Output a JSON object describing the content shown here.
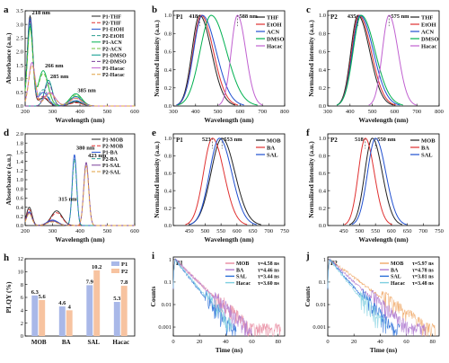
{
  "chart_data": [
    {
      "id": "a",
      "panel_label": "a",
      "type": "line",
      "xlabel": "Wavelength (nm)",
      "ylabel": "Absorbance (a.u.)",
      "xlim": [
        200,
        600
      ],
      "ylim": [
        0,
        3.5
      ],
      "xticks": [
        200,
        300,
        400,
        500,
        600
      ],
      "yticks": [
        0.0,
        0.5,
        1.0,
        1.5,
        2.0,
        2.5,
        3.0,
        3.5
      ],
      "ytick_labels": [
        "0.0",
        "0.5",
        "1.0",
        "1.5",
        "2.0",
        "2.5",
        "3.0",
        "3.5"
      ],
      "annotations": [
        {
          "text": "218 nm",
          "x": 218,
          "y": 3.3
        },
        {
          "text": "266 nm",
          "x": 266,
          "y": 1.35
        },
        {
          "text": "285 nm",
          "x": 285,
          "y": 0.95
        },
        {
          "text": "385 nm",
          "x": 385,
          "y": 0.45
        }
      ],
      "legend_position": "top-right",
      "series": [
        {
          "name": "P1-THF",
          "color": "#222222",
          "dash": "",
          "peaks": [
            [
              218,
              3.3,
              10
            ],
            [
              266,
              0.3,
              18
            ],
            [
              385,
              0.15,
              22
            ]
          ]
        },
        {
          "name": "P2-THF",
          "color": "#e03030",
          "dash": "4,2",
          "peaks": [
            [
              218,
              3.1,
              10
            ],
            [
              266,
              0.35,
              18
            ],
            [
              385,
              0.12,
              22
            ]
          ]
        },
        {
          "name": "P1-EtOH",
          "color": "#1f4fd0",
          "dash": "",
          "peaks": [
            [
              218,
              3.2,
              10
            ],
            [
              266,
              0.5,
              18
            ],
            [
              385,
              0.2,
              22
            ]
          ]
        },
        {
          "name": "P2-EtOH",
          "color": "#2a9d8f",
          "dash": "4,2",
          "peaks": [
            [
              218,
              3.0,
              10
            ],
            [
              266,
              0.6,
              18
            ],
            [
              385,
              0.18,
              22
            ]
          ]
        },
        {
          "name": "P1-ACN",
          "color": "#00b050",
          "dash": "",
          "peaks": [
            [
              218,
              2.9,
              10
            ],
            [
              266,
              1.3,
              18
            ],
            [
              385,
              0.45,
              22
            ]
          ]
        },
        {
          "name": "P2-ACN",
          "color": "#6fbf3f",
          "dash": "4,2",
          "peaks": [
            [
              218,
              2.8,
              10
            ],
            [
              266,
              1.2,
              18
            ],
            [
              385,
              0.4,
              22
            ]
          ]
        },
        {
          "name": "P1-DMSO",
          "color": "#009688",
          "dash": "",
          "peaks": [
            [
              285,
              0.95,
              14
            ],
            [
              385,
              0.35,
              22
            ]
          ]
        },
        {
          "name": "P2-DMSO",
          "color": "#7a3f9a",
          "dash": "4,2",
          "peaks": [
            [
              285,
              0.85,
              14
            ],
            [
              385,
              0.3,
              22
            ]
          ]
        },
        {
          "name": "P1-Hacac",
          "color": "#c060d0",
          "dash": "",
          "peaks": [
            [
              225,
              1.6,
              12
            ],
            [
              290,
              0.5,
              20
            ],
            [
              385,
              0.3,
              22
            ]
          ]
        },
        {
          "name": "P2-Hacac",
          "color": "#e0a040",
          "dash": "4,2",
          "peaks": [
            [
              225,
              1.5,
              12
            ],
            [
              290,
              0.45,
              20
            ],
            [
              385,
              0.28,
              22
            ]
          ]
        }
      ]
    },
    {
      "id": "b",
      "panel_label": "b",
      "type": "line",
      "inner_label": "P1",
      "xlabel": "Wavelength (nm)",
      "ylabel": "Normalized intensity (a.u.)",
      "xlim": [
        300,
        800
      ],
      "ylim": [
        0,
        1.05
      ],
      "xticks": [
        300,
        400,
        500,
        600,
        700,
        800
      ],
      "yticks": [
        0.0,
        0.2,
        0.4,
        0.6,
        0.8,
        1.0
      ],
      "ytick_labels": [
        "0.0",
        "0.2",
        "0.4",
        "0.6",
        "0.8",
        "1.0"
      ],
      "annotations": [
        {
          "text": "418",
          "x": 418,
          "y": 1.0
        },
        {
          "text": "588 nm",
          "x": 588,
          "y": 1.0
        }
      ],
      "legend_position": "top-right",
      "series": [
        {
          "name": "THF",
          "color": "#222222",
          "peak": 418,
          "wl": 55,
          "wr": 85
        },
        {
          "name": "EtOH",
          "color": "#e03030",
          "peak": 425,
          "wl": 58,
          "wr": 88
        },
        {
          "name": "ACN",
          "color": "#1f4fd0",
          "peak": 430,
          "wl": 62,
          "wr": 100
        },
        {
          "name": "DMSO",
          "color": "#00b050",
          "peak": 470,
          "wl": 80,
          "wr": 110
        },
        {
          "name": "Hacac",
          "color": "#c060d0",
          "peak": 588,
          "wl": 45,
          "wr": 60
        }
      ]
    },
    {
      "id": "c",
      "panel_label": "c",
      "type": "line",
      "inner_label": "P2",
      "xlabel": "Wavelength (nm)",
      "ylabel": "Normalized intensity (a.u.)",
      "xlim": [
        300,
        800
      ],
      "ylim": [
        0,
        1.05
      ],
      "xticks": [
        300,
        400,
        500,
        600,
        700,
        800
      ],
      "yticks": [
        0.0,
        0.2,
        0.4,
        0.6,
        0.8,
        1.0
      ],
      "ytick_labels": [
        "0.0",
        "0.2",
        "0.4",
        "0.6",
        "0.8",
        "1.0"
      ],
      "annotations": [
        {
          "text": "435",
          "x": 435,
          "y": 1.0
        },
        {
          "text": "575 nm",
          "x": 575,
          "y": 1.0
        }
      ],
      "legend_position": "top-right",
      "series": [
        {
          "name": "THF",
          "color": "#222222",
          "peak": 435,
          "wl": 50,
          "wr": 85
        },
        {
          "name": "EtOH",
          "color": "#e03030",
          "peak": 440,
          "wl": 52,
          "wr": 88
        },
        {
          "name": "ACN",
          "color": "#1f4fd0",
          "peak": 445,
          "wl": 55,
          "wr": 95
        },
        {
          "name": "DMSO",
          "color": "#00b050",
          "peak": 450,
          "wl": 58,
          "wr": 100
        },
        {
          "name": "Hacac",
          "color": "#c060d0",
          "peak": 575,
          "wl": 48,
          "wr": 65
        }
      ]
    },
    {
      "id": "d",
      "panel_label": "d",
      "type": "line",
      "xlabel": "Wavelength (nm)",
      "ylabel": "Absorbance (a.u.)",
      "xlim": [
        200,
        600
      ],
      "ylim": [
        0,
        2.0
      ],
      "xticks": [
        200,
        300,
        400,
        500,
        600
      ],
      "yticks": [
        0.0,
        0.2,
        0.4,
        0.6,
        0.8,
        1.0,
        1.2,
        1.4,
        1.6,
        1.8,
        2.0
      ],
      "ytick_labels": [
        "0.0",
        "0.2",
        "0.4",
        "0.6",
        "0.8",
        "1.0",
        "1.2",
        "1.4",
        "1.6",
        "1.8",
        "2.0"
      ],
      "annotations": [
        {
          "text": "380 nm",
          "x": 380,
          "y": 1.62
        },
        {
          "text": "423 nm",
          "x": 423,
          "y": 1.45
        },
        {
          "text": "315 nm",
          "x": 315,
          "y": 0.5
        }
      ],
      "legend_position": "top-right",
      "series": [
        {
          "name": "P1-MOB",
          "color": "#222222",
          "dash": "",
          "peaks": [
            [
              315,
              0.32,
              20
            ],
            [
              215,
              0.4,
              10
            ]
          ]
        },
        {
          "name": "P2-MOB",
          "color": "#e03030",
          "dash": "4,2",
          "peaks": [
            [
              315,
              0.28,
              20
            ],
            [
              215,
              0.35,
              10
            ]
          ]
        },
        {
          "name": "P1-BA",
          "color": "#1f4fd0",
          "dash": "",
          "peaks": [
            [
              380,
              1.55,
              8
            ],
            [
              300,
              0.12,
              20
            ],
            [
              215,
              0.3,
              10
            ]
          ]
        },
        {
          "name": "P2-BA",
          "color": "#2a9d8f",
          "dash": "4,2",
          "peaks": [
            [
              380,
              1.45,
              8
            ],
            [
              300,
              0.1,
              20
            ],
            [
              215,
              0.28,
              10
            ]
          ]
        },
        {
          "name": "P1-SAL",
          "color": "#7a3f9a",
          "dash": "",
          "peaks": [
            [
              423,
              1.38,
              9
            ],
            [
              300,
              0.1,
              20
            ],
            [
              215,
              0.28,
              10
            ]
          ]
        },
        {
          "name": "P2-SAL",
          "color": "#e0a040",
          "dash": "4,2",
          "peaks": [
            [
              423,
              1.3,
              9
            ],
            [
              300,
              0.08,
              20
            ],
            [
              215,
              0.26,
              10
            ]
          ]
        }
      ]
    },
    {
      "id": "e",
      "panel_label": "e",
      "type": "line",
      "inner_label": "P1",
      "xlabel": "Wavelength (nm)",
      "ylabel": "Normalized intensity (a.u.)",
      "xlim": [
        400,
        750
      ],
      "ylim": [
        0,
        1.05
      ],
      "xticks": [
        450,
        500,
        550,
        600,
        650,
        700,
        750
      ],
      "yticks": [
        0.0,
        0.2,
        0.4,
        0.6,
        0.8,
        1.0
      ],
      "ytick_labels": [
        "0.0",
        "0.2",
        "0.4",
        "0.6",
        "0.8",
        "1.0"
      ],
      "annotations": [
        {
          "text": "523",
          "x": 523,
          "y": 1.0
        },
        {
          "text": "553 nm",
          "x": 553,
          "y": 1.0
        }
      ],
      "legend_position": "top-right",
      "series": [
        {
          "name": "MOB",
          "color": "#222222",
          "peak": 553,
          "wl": 55,
          "wr": 65
        },
        {
          "name": "BA",
          "color": "#e03030",
          "peak": 523,
          "wl": 45,
          "wr": 58
        },
        {
          "name": "SAL",
          "color": "#1f4fd0",
          "peak": 545,
          "wl": 50,
          "wr": 62
        }
      ]
    },
    {
      "id": "f",
      "panel_label": "f",
      "type": "line",
      "inner_label": "P2",
      "xlabel": "Wavelength (nm)",
      "ylabel": "Normalized intensity (a.u.)",
      "xlim": [
        400,
        750
      ],
      "ylim": [
        0,
        1.05
      ],
      "xticks": [
        450,
        500,
        550,
        600,
        650,
        700,
        750
      ],
      "yticks": [
        0.0,
        0.2,
        0.4,
        0.6,
        0.8,
        1.0
      ],
      "ytick_labels": [
        "0.0",
        "0.2",
        "0.4",
        "0.6",
        "0.8",
        "1.0"
      ],
      "annotations": [
        {
          "text": "518",
          "x": 518,
          "y": 1.0
        },
        {
          "text": "550 nm",
          "x": 550,
          "y": 1.0
        }
      ],
      "legend_position": "top-right",
      "series": [
        {
          "name": "MOB",
          "color": "#222222",
          "peak": 540,
          "wl": 38,
          "wr": 50
        },
        {
          "name": "BA",
          "color": "#e03030",
          "peak": 518,
          "wl": 35,
          "wr": 45
        },
        {
          "name": "SAL",
          "color": "#1f4fd0",
          "peak": 550,
          "wl": 40,
          "wr": 52
        }
      ]
    },
    {
      "id": "h",
      "panel_label": "h",
      "type": "bar",
      "ylabel": "PLQY (%)",
      "ylim": [
        0,
        12
      ],
      "yticks": [
        0,
        2,
        4,
        6,
        8,
        10,
        12
      ],
      "ytick_labels": [
        "0",
        "2",
        "4",
        "6",
        "8",
        "10",
        "12"
      ],
      "categories": [
        "MOB",
        "BA",
        "SAL",
        "Hacac"
      ],
      "legend_position": "top-right",
      "series": [
        {
          "name": "P1",
          "color": "#a9b8e8",
          "values": [
            6.3,
            4.6,
            7.9,
            5.3
          ],
          "labels": [
            "6.3",
            "4.6",
            "7.9",
            "5.3"
          ]
        },
        {
          "name": "P2",
          "color": "#f7c3a0",
          "values": [
            5.6,
            4,
            10.2,
            7.8
          ],
          "labels": [
            "5.6",
            "4",
            "10.2",
            "7.8"
          ]
        }
      ]
    },
    {
      "id": "i",
      "panel_label": "i",
      "type": "line",
      "inner_label": "P1",
      "xlabel": "Time (ns)",
      "ylabel": "Counts",
      "yscale": "log",
      "xlim": [
        0,
        85
      ],
      "ylim": [
        0.0004,
        1.3
      ],
      "xticks": [
        0,
        20,
        40,
        60,
        80
      ],
      "yticks": [
        1,
        0.1,
        0.01,
        0.001
      ],
      "ytick_labels": [
        "1",
        "0.1",
        "0.01",
        "0.001"
      ],
      "legend_position": "top-right",
      "series": [
        {
          "name": "MOB",
          "color": "#e88aa0",
          "tau": "τ=4.58 ns",
          "tauval": 4.58,
          "tmax": 82
        },
        {
          "name": "BA",
          "color": "#b07bd0",
          "tau": "τ=4.46 ns",
          "tauval": 4.46,
          "tmax": 60
        },
        {
          "name": "SAL",
          "color": "#2a6fd8",
          "tau": "τ=3.44 ns",
          "tauval": 3.44,
          "tmax": 48
        },
        {
          "name": "Hacac",
          "color": "#7ecfe0",
          "tau": "τ=3.60 ns",
          "tauval": 3.6,
          "tmax": 45
        }
      ]
    },
    {
      "id": "j",
      "panel_label": "j",
      "type": "line",
      "inner_label": "P2",
      "xlabel": "Time (ns)",
      "ylabel": "Counts",
      "yscale": "log",
      "xlim": [
        0,
        85
      ],
      "ylim": [
        0.0004,
        1.3
      ],
      "xticks": [
        0,
        20,
        40,
        60,
        80
      ],
      "yticks": [
        1,
        0.1,
        0.01,
        0.001
      ],
      "ytick_labels": [
        "1",
        "0.1",
        "0.01",
        "0.001"
      ],
      "legend_position": "top-right",
      "series": [
        {
          "name": "MOB",
          "color": "#f0a868",
          "tau": "τ=5.97 ns",
          "tauval": 5.97,
          "tmax": 82
        },
        {
          "name": "BA",
          "color": "#b07bd0",
          "tau": "τ=4.78 ns",
          "tauval": 4.78,
          "tmax": 75
        },
        {
          "name": "SAL",
          "color": "#2a6fd8",
          "tau": "τ=3.81 ns",
          "tauval": 3.81,
          "tmax": 55
        },
        {
          "name": "Hacac",
          "color": "#7ecfe0",
          "tau": "τ=3.48 ns",
          "tauval": 3.48,
          "tmax": 45
        }
      ]
    }
  ]
}
